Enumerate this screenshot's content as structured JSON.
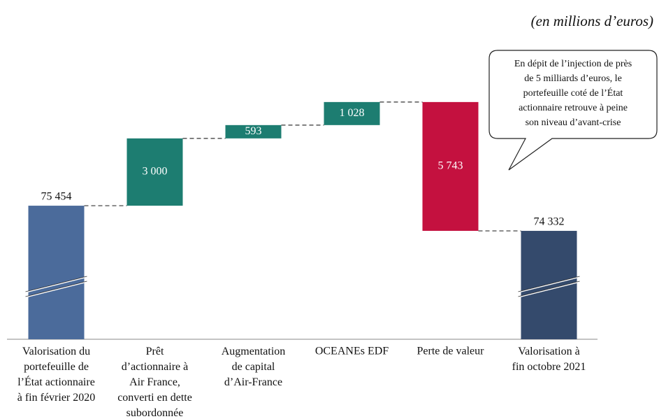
{
  "chart_data": {
    "type": "waterfall",
    "subtitle": "(en millions d’euros)",
    "categories": [
      "Valorisation du\nportefeuille de\nl’État actionnaire\nà fin février 2020",
      "Prêt\nd’actionnaire à\nAir France,\nconverti en dette\nsubordonnée",
      "Augmentation\nde capital\nd’Air-France",
      "OCEANEs EDF",
      "Perte de valeur",
      "Valorisation à\nfin octobre 2021"
    ],
    "values": [
      75454,
      3000,
      593,
      1028,
      -5743,
      74332
    ],
    "value_labels": [
      "75 454",
      "3 000",
      "593",
      "1 028",
      "5 743",
      "74 332"
    ],
    "measures": [
      "total",
      "relative",
      "relative",
      "relative",
      "relative",
      "total"
    ],
    "colors": [
      "#4b6b9b",
      "#1d7d71",
      "#1d7d71",
      "#1d7d71",
      "#c4113f",
      "#344a6c"
    ],
    "ylim": [
      69500,
      84000
    ],
    "axis_break": true,
    "annotation": "En dépit de l’injection de près\nde 5 milliards d’euros, le\nportefeuille coté de l’État\nactionnaire retrouve à peine\nson niveau d’avant-crise"
  }
}
